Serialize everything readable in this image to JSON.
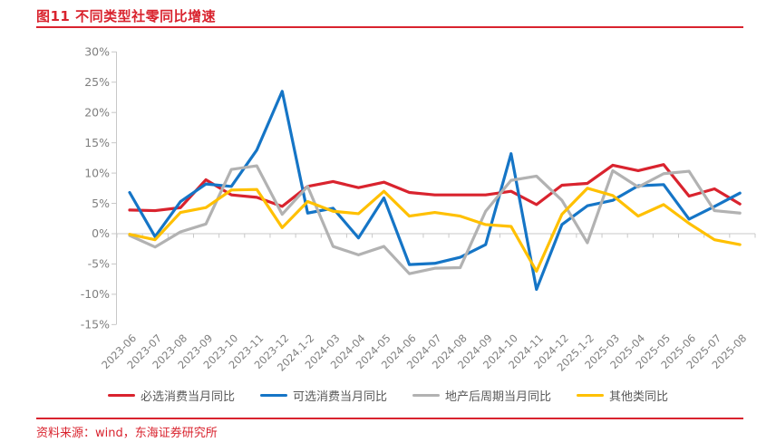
{
  "page": {
    "title": "图11  不同类型社零同比增速",
    "source": "资料来源：wind，东海证券研究所",
    "accent_red": "#d9232e"
  },
  "chart_data": {
    "type": "line",
    "title": "不同类型社零同比增速",
    "yunit": "%",
    "ylim": [
      -15,
      30
    ],
    "yticks": [
      30,
      25,
      20,
      15,
      10,
      5,
      0,
      -5,
      -10,
      -15
    ],
    "grid": "zero-line-only",
    "legend_position": "bottom",
    "axis_color": "#c8c8c8",
    "categories": [
      "2023-06",
      "2023-07",
      "2023-08",
      "2023-09",
      "2023-10",
      "2023-11",
      "2023-12",
      "2024.1-2",
      "2024-03",
      "2024-04",
      "2024-05",
      "2024-06",
      "2024-07",
      "2024-08",
      "2024-09",
      "2024-10",
      "2024-11",
      "2024-12",
      "2025.1-2",
      "2025-03",
      "2025-04",
      "2025-05",
      "2025-06",
      "2025-07",
      "2025-08"
    ],
    "series": [
      {
        "name": "必选消费当月同比",
        "color": "#d9232e",
        "values": [
          3.9,
          3.8,
          4.3,
          8.9,
          6.4,
          6.0,
          4.5,
          7.8,
          8.6,
          7.6,
          8.5,
          6.8,
          6.4,
          6.4,
          6.4,
          7.0,
          4.8,
          8.0,
          8.3,
          11.3,
          10.4,
          11.4,
          6.2,
          7.4,
          4.9
        ]
      },
      {
        "name": "可选消费当月同比",
        "color": "#1575c6",
        "values": [
          6.8,
          -0.5,
          5.3,
          8.2,
          7.8,
          13.8,
          23.5,
          3.4,
          4.2,
          -0.7,
          5.9,
          -5.1,
          -4.9,
          -3.9,
          -1.8,
          13.2,
          -9.2,
          1.5,
          4.6,
          5.5,
          7.9,
          8.1,
          2.4,
          4.5,
          6.7
        ]
      },
      {
        "name": "地产后周期当月同比",
        "color": "#b2b2b2",
        "values": [
          -0.3,
          -2.2,
          0.3,
          1.6,
          10.6,
          11.2,
          3.2,
          7.8,
          -2.1,
          -3.5,
          -2.1,
          -6.6,
          -5.7,
          -5.6,
          3.7,
          8.8,
          9.5,
          5.5,
          -1.5,
          10.4,
          7.7,
          9.9,
          10.3,
          3.8,
          3.4
        ]
      },
      {
        "name": "其他类同比",
        "color": "#ffc000",
        "values": [
          -0.1,
          -1.0,
          3.5,
          4.3,
          7.2,
          7.3,
          1.0,
          5.3,
          3.7,
          3.3,
          7.0,
          2.9,
          3.5,
          2.9,
          1.5,
          1.2,
          -6.2,
          3.2,
          7.5,
          6.3,
          2.9,
          4.8,
          1.7,
          -1.0,
          -1.8
        ]
      }
    ]
  }
}
